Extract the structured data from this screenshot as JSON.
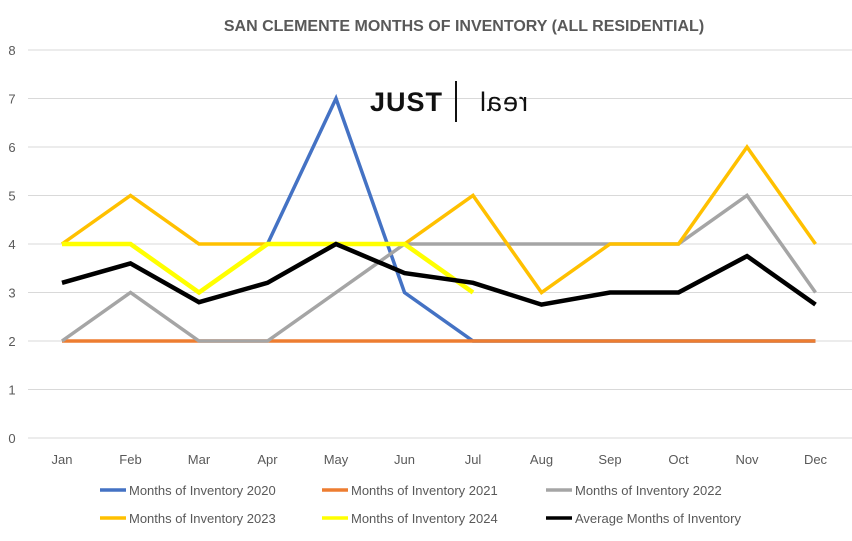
{
  "logo": {
    "left": "JUST",
    "right": "real"
  },
  "chart_data": {
    "type": "line",
    "title": "SAN CLEMENTE MONTHS OF INVENTORY (ALL RESIDENTIAL)",
    "xlabel": "",
    "ylabel": "",
    "categories": [
      "Jan",
      "Feb",
      "Mar",
      "Apr",
      "May",
      "Jun",
      "Jul",
      "Aug",
      "Sep",
      "Oct",
      "Nov",
      "Dec"
    ],
    "ylim": [
      0,
      8
    ],
    "yticks": [
      0,
      1,
      2,
      3,
      4,
      5,
      6,
      7,
      8
    ],
    "grid": true,
    "legend": "bottom",
    "series": [
      {
        "name": "Months of Inventory 2020",
        "color": "#4472C4",
        "values": [
          4,
          4,
          3,
          4,
          7,
          3,
          2,
          2,
          2,
          2,
          2,
          2
        ]
      },
      {
        "name": "Months of Inventory 2021",
        "color": "#ED7D31",
        "values": [
          2,
          2,
          2,
          2,
          2,
          2,
          2,
          2,
          2,
          2,
          2,
          2
        ]
      },
      {
        "name": "Months of Inventory 2022",
        "color": "#A5A5A5",
        "values": [
          2,
          3,
          2,
          2,
          3,
          4,
          4,
          4,
          4,
          4,
          5,
          3
        ]
      },
      {
        "name": "Months of Inventory 2023",
        "color": "#FFC000",
        "values": [
          4,
          5,
          4,
          4,
          4,
          4,
          5,
          3,
          4,
          4,
          6,
          4
        ]
      },
      {
        "name": "Months of Inventory 2024",
        "color": "#FFFF00",
        "values": [
          4,
          4,
          3,
          4,
          4,
          4,
          3,
          null,
          null,
          null,
          null,
          null
        ]
      },
      {
        "name": "Average Months of Inventory",
        "color": "#000000",
        "values": [
          3.2,
          3.6,
          2.8,
          3.2,
          4.0,
          3.4,
          3.2,
          2.75,
          3.0,
          3.0,
          3.75,
          2.75
        ]
      }
    ]
  }
}
